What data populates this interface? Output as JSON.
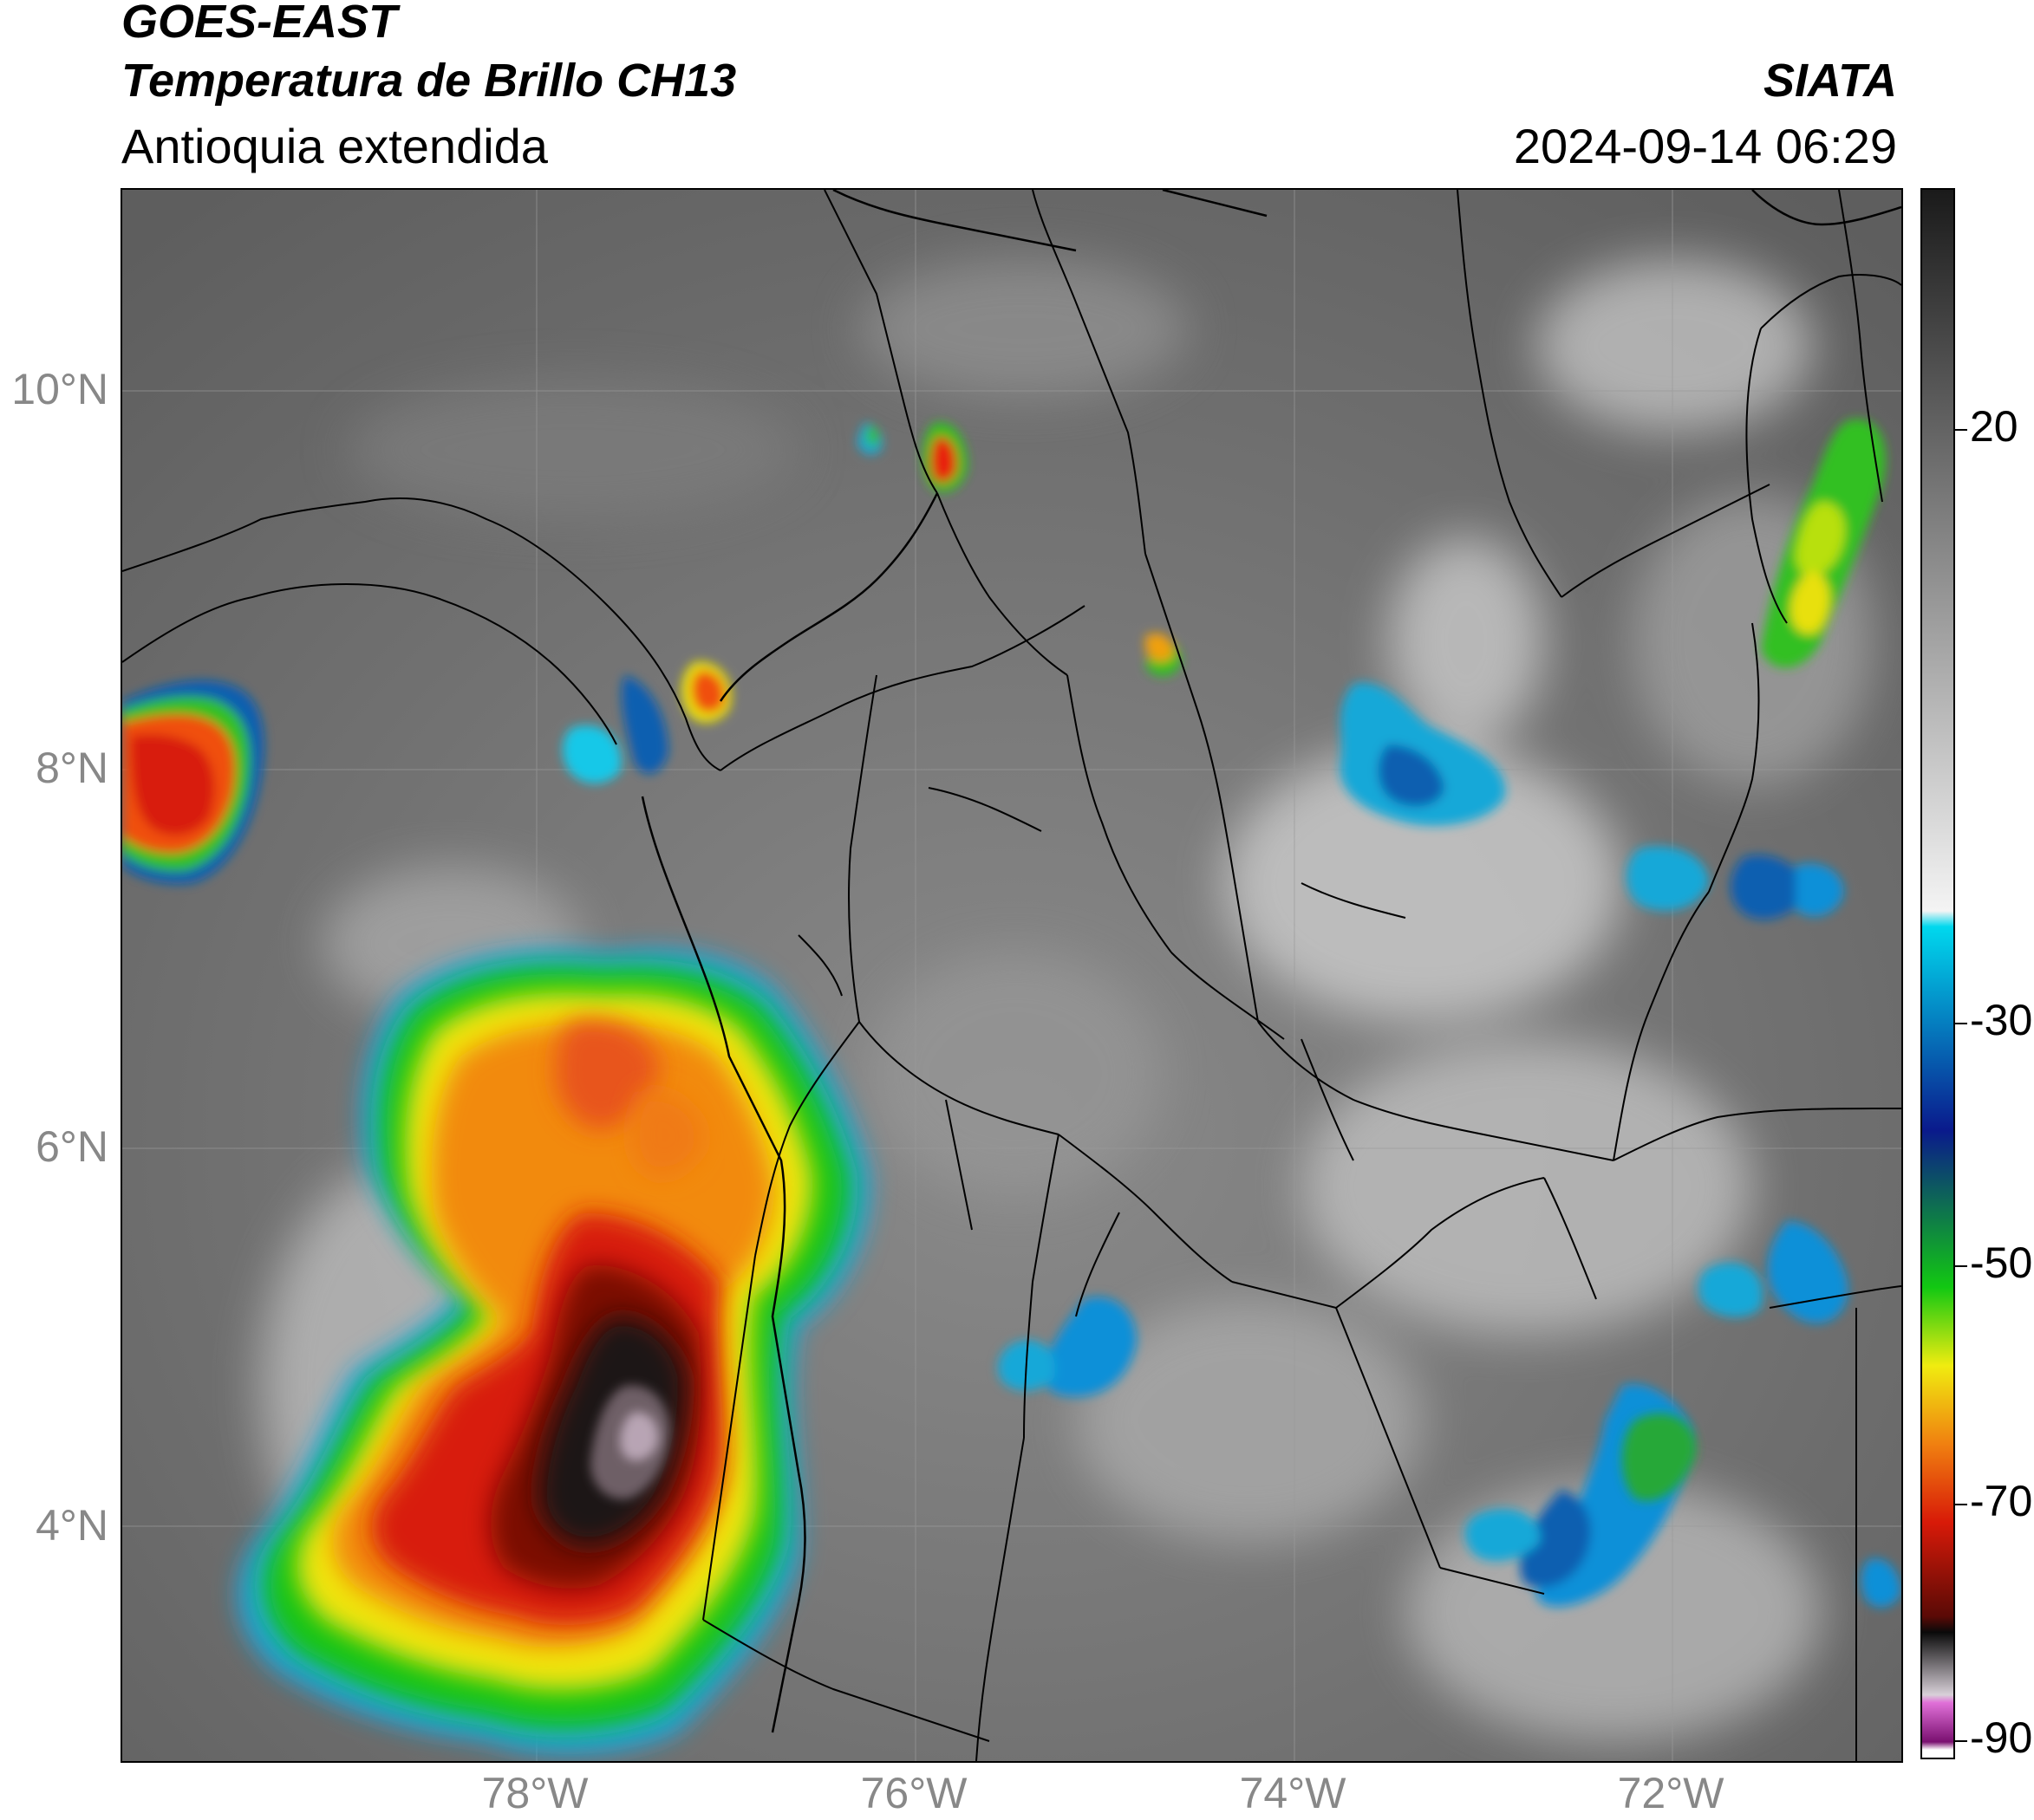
{
  "header": {
    "title_line1": "GOES-EAST",
    "title_line2": "Temperatura de Brillo CH13",
    "subtitle": "Antioquia extendida",
    "organization": "SIATA",
    "datetime": "2024-09-14 06:29"
  },
  "map": {
    "latitude_labels": [
      "10°N",
      "8°N",
      "6°N",
      "4°N"
    ],
    "longitude_labels": [
      "78°W",
      "76°W",
      "74°W",
      "72°W"
    ],
    "colors": {
      "background_gray": "#6f6f6f",
      "border_line": "#000000",
      "grid_line": "#9a9a9a"
    }
  },
  "colorbar": {
    "tick_labels": [
      "20",
      "-30",
      "-50",
      "-70",
      "-90"
    ],
    "colors": {
      "warm_gray_top": "#1a1a1a",
      "cyan": "#00d8ee",
      "blue": "#0a1a8c",
      "green": "#12c812",
      "yellow": "#f0ec10",
      "red": "#d81a08",
      "black": "#0a0a0a",
      "magenta": "#e070d8",
      "purple": "#7a1070"
    }
  }
}
